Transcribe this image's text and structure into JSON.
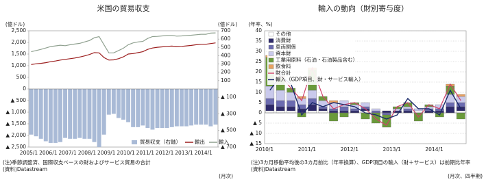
{
  "chart_data": [
    {
      "type": "combo",
      "title": "米国の貿易収支",
      "y_label": "(億ドル)",
      "y2_label": "(億ドル)",
      "note": "(注)季節調整済、国際収支ベースの財およびサービス貿易の合計",
      "source": "(資料)Datastream",
      "frequency": "(月次)",
      "categories": [
        "2005/1",
        null,
        null,
        null,
        "2006/1",
        null,
        null,
        null,
        "2007/1",
        null,
        null,
        null,
        "2008/1",
        null,
        null,
        null,
        "2009/1",
        null,
        null,
        null,
        "2010/1",
        null,
        null,
        null,
        "2011/1",
        null,
        null,
        null,
        "2012/1",
        null,
        null,
        null,
        "2013/1",
        null,
        null,
        null,
        "2014/1",
        null,
        null
      ],
      "ylim": [
        -2500,
        2500
      ],
      "yticks": [
        {
          "value": 2500,
          "label": "2,500"
        },
        {
          "value": 2000,
          "label": "2,000"
        },
        {
          "value": 1500,
          "label": "1,500"
        },
        {
          "value": 1000,
          "label": "1,000"
        },
        500,
        0,
        {
          "value": -500,
          "label": "▲ 500"
        },
        {
          "value": -1000,
          "label": "▲ 1,000"
        },
        {
          "value": -1500,
          "label": "▲ 1,500"
        },
        {
          "value": -2000,
          "label": "▲ 2,000"
        },
        {
          "value": -2500,
          "label": "▲ 2,500"
        }
      ],
      "y2lim": [
        -700,
        700
      ],
      "y2ticks": [
        700,
        600,
        500,
        400,
        300,
        200,
        100,
        {
          "value": -100,
          "label": "▲ 100"
        },
        {
          "value": -300,
          "label": "▲ 300"
        },
        {
          "value": -500,
          "label": "▲ 500"
        },
        {
          "value": -700,
          "label": "▲ 700"
        }
      ],
      "grid": false,
      "series": [
        {
          "name": "貿易収支（右軸）",
          "type": "bar",
          "axis": "y2",
          "color": "#a9bad6",
          "values": [
            -550,
            -570,
            -600,
            -630,
            -650,
            -650,
            -640,
            -590,
            -600,
            -600,
            -590,
            -600,
            -600,
            -640,
            -700,
            -550,
            -310,
            -300,
            -350,
            -370,
            -400,
            -460,
            -460,
            -440,
            -470,
            -490,
            -470,
            -470,
            -470,
            -460,
            -450,
            -450,
            -450,
            -440,
            -430,
            -430,
            -430,
            -450,
            -430
          ]
        },
        {
          "name": "輸出",
          "type": "line",
          "color": "#9b1c1c",
          "values": [
            1050,
            1080,
            1100,
            1130,
            1170,
            1200,
            1240,
            1270,
            1300,
            1330,
            1370,
            1420,
            1480,
            1560,
            1550,
            1350,
            1240,
            1250,
            1300,
            1380,
            1500,
            1520,
            1560,
            1600,
            1700,
            1760,
            1790,
            1810,
            1830,
            1840,
            1820,
            1830,
            1850,
            1870,
            1900,
            1920,
            1920,
            1950,
            1980
          ]
        },
        {
          "name": "輸入",
          "type": "line",
          "color": "#8fa08f",
          "values": [
            1600,
            1650,
            1700,
            1760,
            1820,
            1850,
            1880,
            1860,
            1900,
            1930,
            1960,
            2020,
            2080,
            2200,
            2250,
            1900,
            1550,
            1550,
            1650,
            1750,
            1900,
            1980,
            2020,
            2040,
            2170,
            2250,
            2260,
            2280,
            2300,
            2300,
            2270,
            2280,
            2300,
            2310,
            2330,
            2350,
            2350,
            2400,
            2410
          ]
        }
      ]
    },
    {
      "type": "stacked-bar",
      "title": "輸入の動向（財別寄与度）",
      "y_label": "(年率、%)",
      "note": "(注)3カ月移動平均後の3カ月前比（年率換算）、GDP項目の輸入（財＋サービス）は前期比年率",
      "source": "(資料)Datastream",
      "frequency": "(月次、四半期)",
      "categories": [
        "2010/1",
        null,
        null,
        null,
        "2011/1",
        null,
        null,
        null,
        "2012/1",
        null,
        null,
        null,
        "2013/1",
        null,
        null,
        null,
        "2014/1",
        null,
        null
      ],
      "ylim": [
        -15,
        40
      ],
      "yticks": [
        40,
        35,
        30,
        25,
        20,
        15,
        10,
        5,
        0,
        {
          "value": -5,
          "label": "▲ 5"
        },
        {
          "value": -10,
          "label": "▲ 10"
        },
        {
          "value": -15,
          "label": "▲ 15"
        }
      ],
      "grid": true,
      "series": [
        {
          "name": "その他",
          "type": "bar",
          "color": "#ffffff",
          "values": [
            1,
            1,
            1,
            0,
            1,
            1,
            0,
            0,
            0,
            1,
            0,
            0,
            0,
            0,
            1,
            0,
            0,
            0,
            1
          ]
        },
        {
          "name": "消費財",
          "type": "bar",
          "color": "#2e2a6b",
          "values": [
            3,
            2,
            2,
            2,
            3,
            1,
            1,
            1,
            1,
            1,
            0,
            1,
            1,
            1,
            0,
            1,
            1,
            3,
            2
          ]
        },
        {
          "name": "車両関係",
          "type": "bar",
          "color": "#6b6bb0",
          "values": [
            3,
            3,
            3,
            2,
            3,
            1,
            1,
            2,
            1,
            1,
            1,
            -1,
            0,
            1,
            0,
            1,
            1,
            2,
            2
          ]
        },
        {
          "name": "資本財",
          "type": "bar",
          "color": "#c9c9ec",
          "values": [
            6,
            5,
            4,
            3,
            4,
            3,
            3,
            3,
            2,
            2,
            1,
            0,
            1,
            1,
            1,
            1,
            2,
            4,
            3
          ]
        },
        {
          "name": "工業用原料（石油・石油製品含む）",
          "type": "bar",
          "color": "#6a9a3a",
          "values": [
            14,
            6,
            2,
            -2,
            10,
            2,
            -4,
            -2,
            1,
            -3,
            -5,
            -6,
            1,
            2,
            -4,
            1,
            -2,
            4,
            -3
          ]
        },
        {
          "name": "飲食料",
          "type": "bar",
          "color": "#e8a060",
          "values": [
            1,
            1,
            0,
            1,
            1,
            0,
            1,
            0,
            0,
            0,
            0,
            0,
            0,
            0,
            0,
            0,
            0,
            1,
            1
          ]
        },
        {
          "name": "財合計",
          "type": "line",
          "color": "#d0406a",
          "values": [
            28,
            18,
            12,
            6,
            22,
            8,
            2,
            4,
            5,
            2,
            -3,
            -6,
            3,
            5,
            -2,
            4,
            2,
            14,
            6
          ]
        },
        {
          "name": "輸入（GDP項目、財・サービス輸入）",
          "type": "line",
          "color": "#1a2a6a",
          "values": [
            11,
            18,
            14,
            -1,
            5,
            3,
            5,
            4,
            3,
            0,
            -1,
            -3,
            -1,
            7,
            2,
            2,
            -1,
            11,
            2
          ]
        }
      ]
    }
  ]
}
